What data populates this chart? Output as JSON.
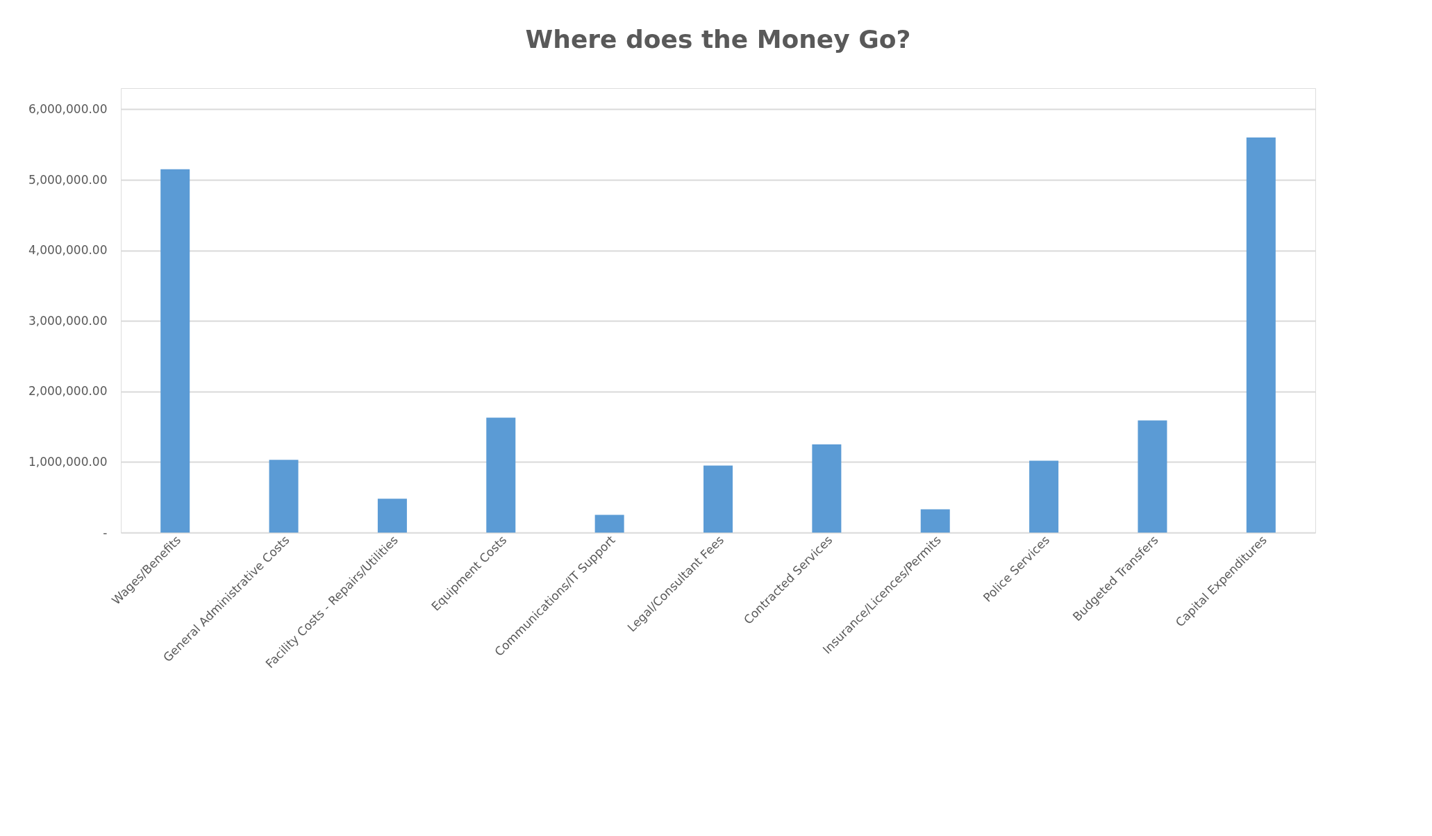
{
  "chart_data": {
    "type": "bar",
    "title": "Where does the Money Go?",
    "categories": [
      "Wages/Benefits",
      "General Administrative Costs",
      "Facility Costs - Repairs/Utilities",
      "Equipment Costs",
      "Communications/IT Support",
      "Legal/Consultant Fees",
      "Contracted Services",
      "Insurance/Licences/Permits",
      "Police Services",
      "Budgeted Transfers",
      "Capital Expenditures"
    ],
    "values": [
      5150000,
      1030000,
      480000,
      1630000,
      250000,
      950000,
      1250000,
      330000,
      1020000,
      1590000,
      5600000
    ],
    "color": "#5b9bd5",
    "ylim": [
      0,
      6300000
    ],
    "yticks": [
      {
        "value": 0,
        "label": "-"
      },
      {
        "value": 1000000,
        "label": "1,000,000.00"
      },
      {
        "value": 2000000,
        "label": "2,000,000.00"
      },
      {
        "value": 3000000,
        "label": "3,000,000.00"
      },
      {
        "value": 4000000,
        "label": "4,000,000.00"
      },
      {
        "value": 5000000,
        "label": "5,000,000.00"
      },
      {
        "value": 6000000,
        "label": "6,000,000.00"
      }
    ],
    "grid": "y"
  }
}
